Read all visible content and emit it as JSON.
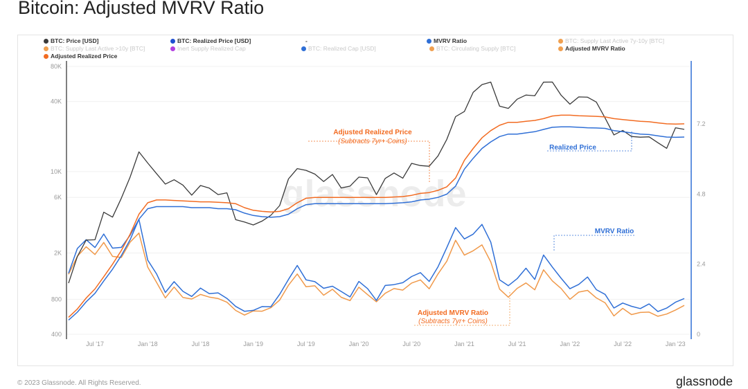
{
  "title": "Bitcoin: Adjusted MVRV Ratio",
  "footer": "© 2023 Glassnode. All Rights Reserved.",
  "logo": "glassnode",
  "watermark": "glassnode",
  "legend": [
    {
      "label": "BTC: Price [USD]",
      "color": "#3a3a3a",
      "active": true
    },
    {
      "label": "BTC: Realized Price [USD]",
      "color": "#1f4fd1",
      "active": true
    },
    {
      "label": "-",
      "color": "",
      "active": true
    },
    {
      "label": "MVRV Ratio",
      "color": "#2f6fd6",
      "active": true
    },
    {
      "label": "BTC: Supply Last Active 7y-10y [BTC]",
      "color": "#f0a050",
      "active": false
    },
    {
      "label": "BTC: Supply Last Active >10y [BTC]",
      "color": "#f0a050",
      "active": false
    },
    {
      "label": "Inert Supply Realized Cap",
      "color": "#b23fe0",
      "active": false
    },
    {
      "label": "BTC: Realized Cap [USD]",
      "color": "#2f6fd6",
      "active": false
    },
    {
      "label": "BTC: Circulating Supply [BTC]",
      "color": "#f0a050",
      "active": false
    },
    {
      "label": "Adjusted MVRV Ratio",
      "color": "#f0a050",
      "active": true
    },
    {
      "label": "Adjusted Realized Price",
      "color": "#f26b21",
      "active": true
    }
  ],
  "annotations": {
    "adj_realized": "Adjusted Realized Price",
    "adj_realized_sub": "(Subtracts 7yr+ Coins)",
    "realized": "Realized Price",
    "mvrv": "MVRV Ratio",
    "adj_mvrv": "Adjusted MVRV Ratio",
    "adj_mvrv_sub": "(Subtracts 7yr+ Coins)"
  },
  "chart_data": {
    "type": "line",
    "title": "Bitcoin: Adjusted MVRV Ratio",
    "x_ticks": [
      "Jul '17",
      "Jan '18",
      "Jul '18",
      "Jan '19",
      "Jul '19",
      "Jan '20",
      "Jul '20",
      "Jan '21",
      "Jul '21",
      "Jan '22",
      "Jul '22",
      "Jan '23"
    ],
    "y_left": {
      "scale": "log",
      "ticks": [
        "400",
        "800",
        "2K",
        "6K",
        "10K",
        "40K",
        "80K"
      ],
      "tick_values": [
        400,
        800,
        2000,
        6000,
        10000,
        40000,
        80000
      ],
      "range": [
        400,
        80000
      ]
    },
    "y_right": {
      "scale": "linear",
      "ticks": [
        "0",
        "2.4",
        "4.8",
        "7.2"
      ],
      "tick_values": [
        0,
        2.4,
        4.8,
        7.2
      ]
    },
    "x": [
      "2017-04",
      "2017-05",
      "2017-06",
      "2017-07",
      "2017-08",
      "2017-09",
      "2017-10",
      "2017-11",
      "2017-12",
      "2018-01",
      "2018-02",
      "2018-03",
      "2018-04",
      "2018-05",
      "2018-06",
      "2018-07",
      "2018-08",
      "2018-09",
      "2018-10",
      "2018-11",
      "2018-12",
      "2019-01",
      "2019-02",
      "2019-03",
      "2019-04",
      "2019-05",
      "2019-06",
      "2019-07",
      "2019-08",
      "2019-09",
      "2019-10",
      "2019-11",
      "2019-12",
      "2020-01",
      "2020-02",
      "2020-03",
      "2020-04",
      "2020-05",
      "2020-06",
      "2020-07",
      "2020-08",
      "2020-09",
      "2020-10",
      "2020-11",
      "2020-12",
      "2021-01",
      "2021-02",
      "2021-03",
      "2021-04",
      "2021-05",
      "2021-06",
      "2021-07",
      "2021-08",
      "2021-09",
      "2021-10",
      "2021-11",
      "2021-12",
      "2022-01",
      "2022-02",
      "2022-03",
      "2022-04",
      "2022-05",
      "2022-06",
      "2022-07",
      "2022-08",
      "2022-09",
      "2022-10",
      "2022-11",
      "2022-12",
      "2023-01",
      "2023-02"
    ],
    "series": [
      {
        "name": "BTC: Price [USD]",
        "axis": "left",
        "color": "#3a3a3a",
        "values": [
          1100,
          1900,
          2500,
          2700,
          4300,
          4200,
          5800,
          9000,
          15000,
          11500,
          10000,
          7500,
          8800,
          7500,
          6300,
          7700,
          7000,
          6600,
          6300,
          4000,
          3600,
          3500,
          3800,
          4100,
          5300,
          8300,
          11000,
          10000,
          9600,
          8300,
          9200,
          7500,
          7200,
          9300,
          8600,
          6400,
          8800,
          9500,
          9100,
          11300,
          11700,
          10800,
          13800,
          19000,
          29000,
          34000,
          46000,
          58000,
          57000,
          37000,
          35000,
          41000,
          47000,
          43000,
          61000,
          57000,
          46000,
          38000,
          43000,
          45000,
          38000,
          30000,
          20000,
          23000,
          20000,
          19400,
          20500,
          17000,
          16500,
          23000,
          23500
        ]
      },
      {
        "name": "BTC: Realized Price [USD]",
        "axis": "left",
        "color": "#2f6fd6",
        "values": [
          530,
          620,
          760,
          900,
          1150,
          1450,
          1900,
          2600,
          3900,
          4800,
          5000,
          5000,
          5000,
          5000,
          4900,
          4900,
          4900,
          4800,
          4800,
          4700,
          4400,
          4200,
          4100,
          4050,
          4100,
          4300,
          4800,
          5200,
          5300,
          5300,
          5300,
          5300,
          5300,
          5300,
          5300,
          5300,
          5300,
          5350,
          5400,
          5500,
          5700,
          5800,
          6000,
          6400,
          7500,
          10500,
          13000,
          15800,
          18000,
          20000,
          21000,
          21000,
          21500,
          22000,
          23000,
          24000,
          24200,
          24200,
          24000,
          23800,
          23700,
          23500,
          22500,
          22000,
          21500,
          21000,
          20800,
          20300,
          19800,
          19700,
          19800
        ]
      },
      {
        "name": "Adjusted Realized Price",
        "axis": "left",
        "color": "#f26b21",
        "values": [
          560,
          660,
          820,
          980,
          1250,
          1600,
          2100,
          2900,
          4300,
          5400,
          5700,
          5700,
          5650,
          5600,
          5550,
          5500,
          5500,
          5450,
          5400,
          5300,
          4900,
          4650,
          4550,
          4500,
          4550,
          4800,
          5400,
          5900,
          6000,
          6000,
          6000,
          6000,
          6000,
          6000,
          6000,
          6000,
          6000,
          6050,
          6100,
          6250,
          6500,
          6600,
          6900,
          7400,
          8800,
          12500,
          15800,
          19500,
          22500,
          25000,
          26500,
          26500,
          27000,
          27500,
          28500,
          30000,
          30500,
          30500,
          30200,
          30000,
          29800,
          29500,
          28500,
          28000,
          27500,
          27000,
          26800,
          26200,
          25700,
          25600,
          25700
        ]
      },
      {
        "name": "MVRV Ratio",
        "axis": "right",
        "color": "#2f6fd6",
        "values": [
          2.1,
          2.9,
          3.3,
          2.9,
          3.5,
          2.9,
          3.0,
          3.4,
          3.9,
          2.6,
          2.0,
          1.5,
          1.75,
          1.5,
          1.3,
          1.55,
          1.45,
          1.35,
          1.3,
          0.9,
          0.82,
          0.82,
          0.92,
          1.0,
          1.3,
          1.95,
          2.3,
          1.9,
          1.8,
          1.55,
          1.7,
          1.4,
          1.35,
          1.75,
          1.6,
          1.15,
          1.65,
          1.75,
          1.7,
          2.05,
          2.05,
          1.85,
          2.3,
          2.95,
          3.7,
          3.2,
          3.5,
          3.7,
          3.2,
          1.85,
          1.65,
          1.95,
          2.2,
          1.95,
          2.65,
          2.35,
          1.9,
          1.55,
          1.75,
          1.9,
          1.6,
          1.3,
          0.95,
          1.05,
          0.95,
          0.92,
          0.98,
          0.85,
          0.83,
          1.15,
          1.2
        ]
      },
      {
        "name": "Adjusted MVRV Ratio",
        "axis": "right",
        "color": "#f0994a",
        "values": [
          2.0,
          2.7,
          3.0,
          2.7,
          3.2,
          2.6,
          2.7,
          3.1,
          3.5,
          2.3,
          1.75,
          1.3,
          1.55,
          1.33,
          1.15,
          1.4,
          1.27,
          1.2,
          1.15,
          0.75,
          0.73,
          0.74,
          0.83,
          0.9,
          1.15,
          1.73,
          2.0,
          1.7,
          1.6,
          1.38,
          1.53,
          1.25,
          1.2,
          1.55,
          1.43,
          1.05,
          1.45,
          1.55,
          1.5,
          1.8,
          1.8,
          1.63,
          2.0,
          2.55,
          3.2,
          2.7,
          2.9,
          3.0,
          2.55,
          1.48,
          1.32,
          1.55,
          1.75,
          1.56,
          2.15,
          1.9,
          1.5,
          1.25,
          1.42,
          1.5,
          1.28,
          1.02,
          0.7,
          0.82,
          0.73,
          0.72,
          0.76,
          0.65,
          0.64,
          0.9,
          0.92
        ]
      }
    ]
  }
}
